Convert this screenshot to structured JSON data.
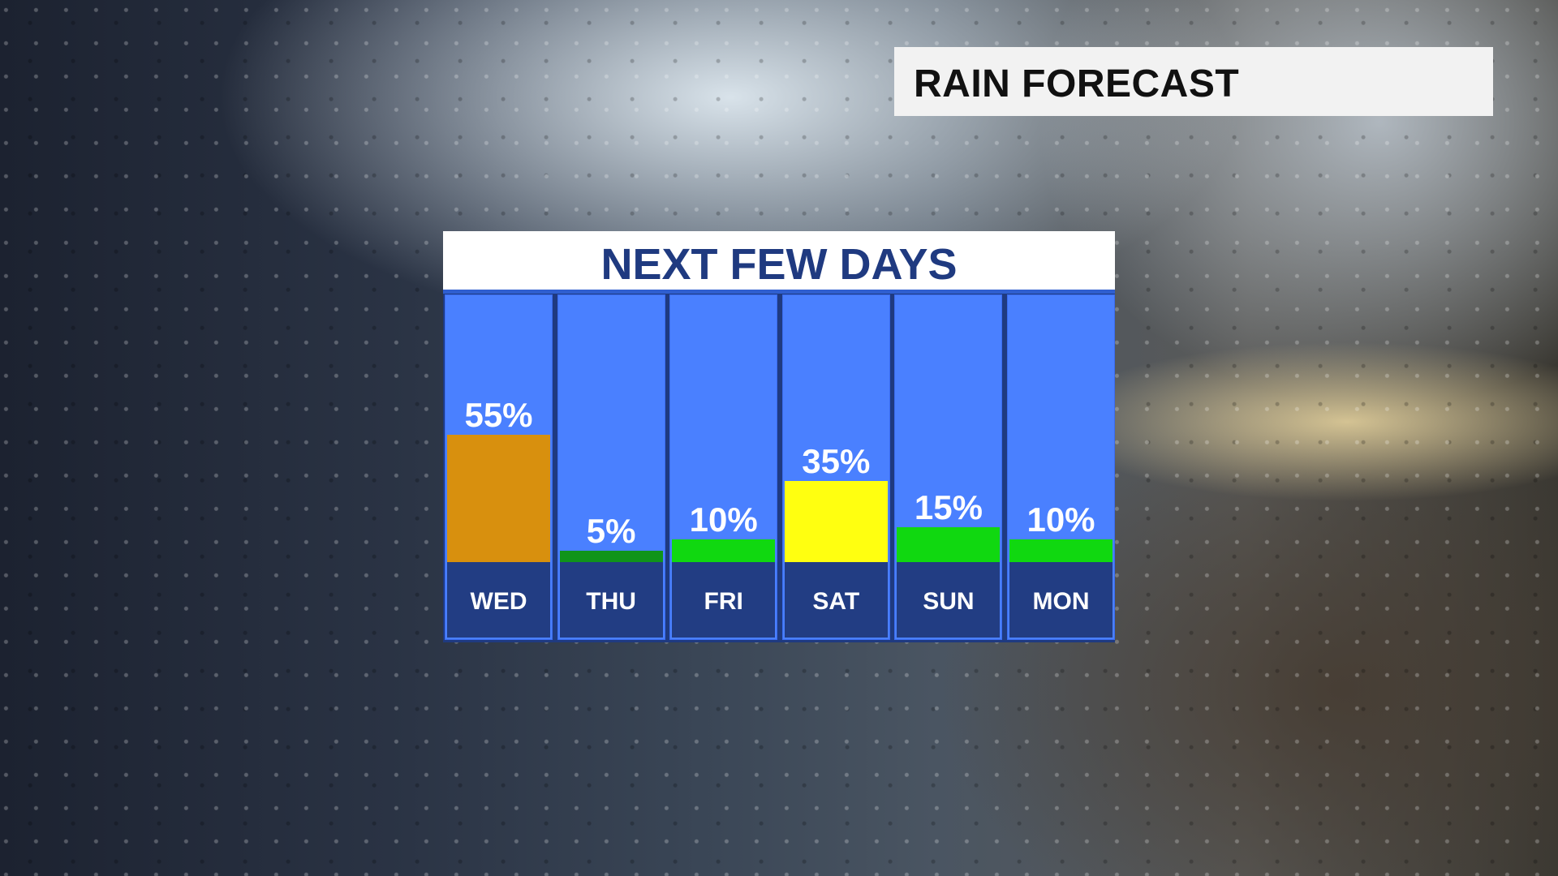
{
  "header": {
    "title": "RAIN FORECAST"
  },
  "chart_data": {
    "type": "bar",
    "title": "NEXT FEW DAYS",
    "categories": [
      "WED",
      "THU",
      "FRI",
      "SAT",
      "SUN",
      "MON"
    ],
    "values": [
      55,
      5,
      10,
      35,
      15,
      10
    ],
    "labels": [
      "55%",
      "5%",
      "10%",
      "35%",
      "15%",
      "10%"
    ],
    "colors": [
      "#d8900e",
      "#10941a",
      "#10d810",
      "#ffff10",
      "#10d810",
      "#10d810"
    ],
    "ylim": [
      0,
      100
    ],
    "unit": "%",
    "grid": false,
    "background_color": "#4a80ff",
    "label_band_color": "#223d83"
  }
}
